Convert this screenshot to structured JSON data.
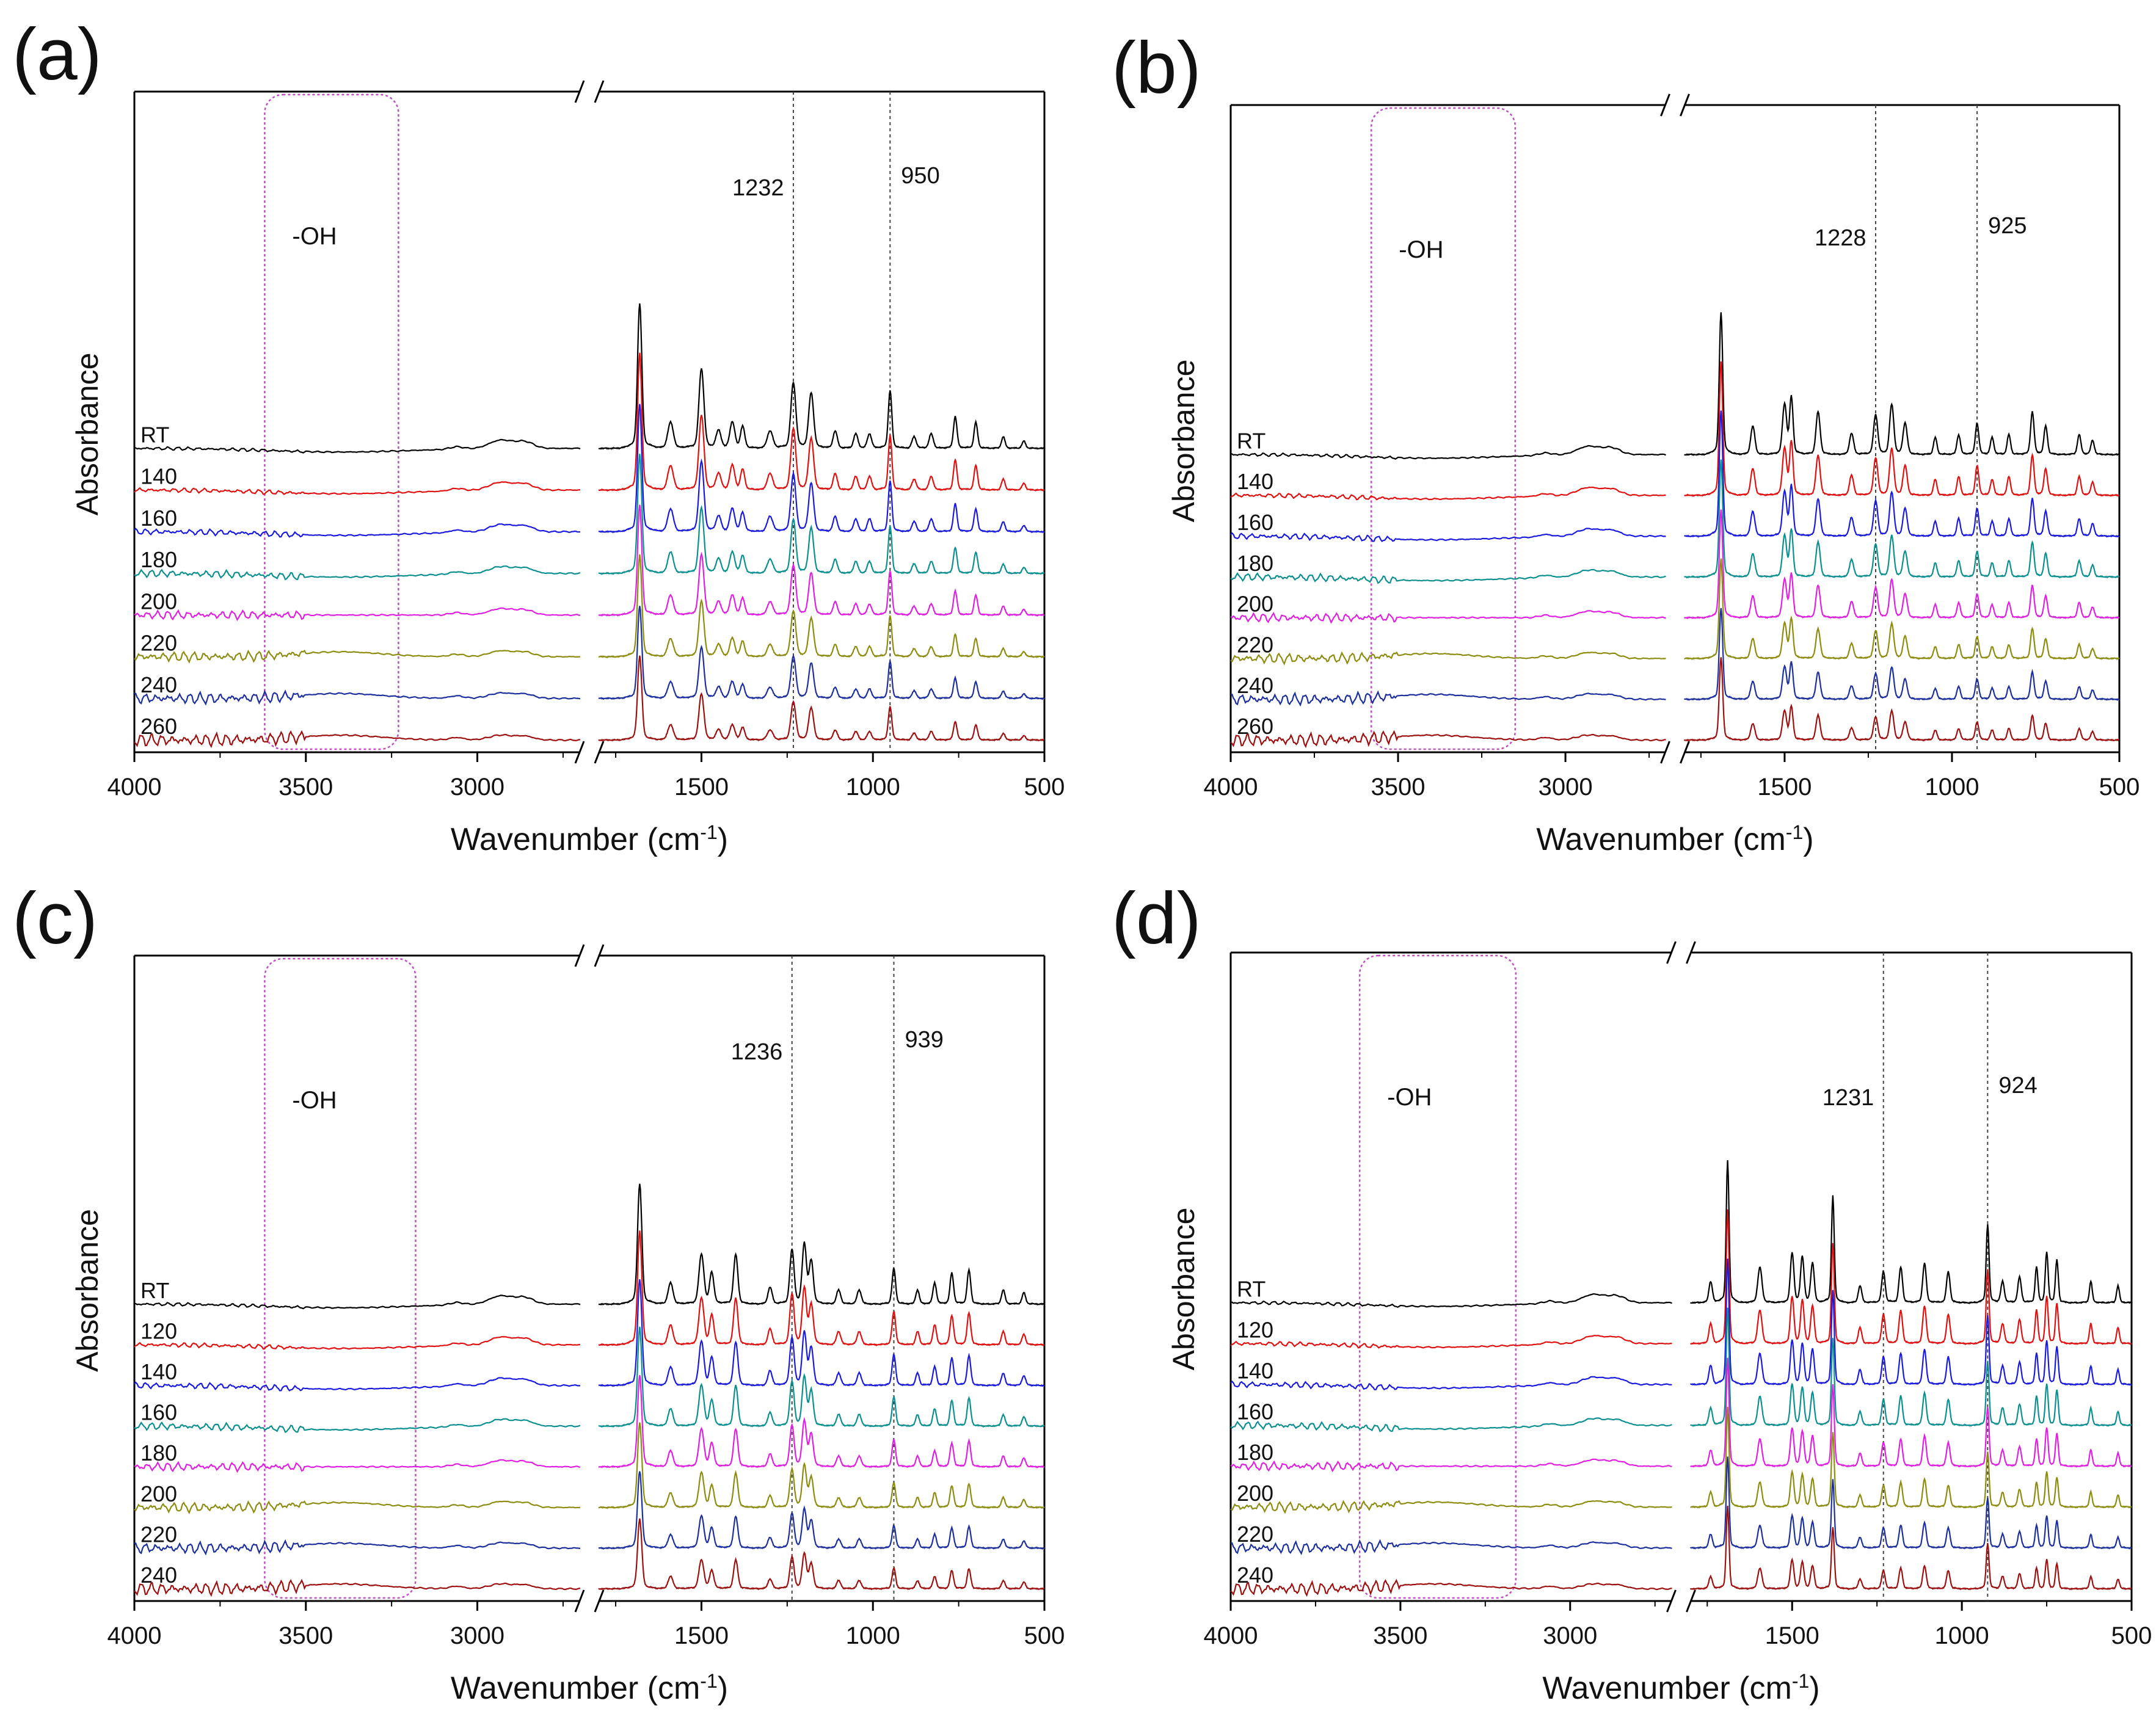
{
  "figure": {
    "description_free": true
  },
  "chart_data": [
    {
      "type": "line",
      "panel_label": "(a)",
      "xlabel_main": "Wavenumber (cm",
      "xlabel_sup": "-1",
      "xlabel_close": ")",
      "ylabel": "Absorbance",
      "xlim": [
        4000,
        500
      ],
      "axis_break": [
        2700,
        1800
      ],
      "xticks": [
        4000,
        3500,
        3000,
        1500,
        1000,
        500
      ],
      "xtick_labels": [
        "4000",
        "3500",
        "3000",
        "1500",
        "1000",
        "500"
      ],
      "box": {
        "label": "-OH",
        "range": [
          3620,
          3230
        ],
        "color": "#c04fc0"
      },
      "vlines": [
        {
          "x": 1232,
          "label": "1232"
        },
        {
          "x": 950,
          "label": "950"
        }
      ],
      "series": [
        {
          "name": "RT",
          "color": "#000000"
        },
        {
          "name": "140",
          "color": "#e01010"
        },
        {
          "name": "160",
          "color": "#1a1adf"
        },
        {
          "name": "180",
          "color": "#0b8f8f"
        },
        {
          "name": "200",
          "color": "#e020e0"
        },
        {
          "name": "220",
          "color": "#8c8c10"
        },
        {
          "name": "240",
          "color": "#1c2f9c"
        },
        {
          "name": "260",
          "color": "#9c1010"
        }
      ]
    },
    {
      "type": "line",
      "panel_label": "(b)",
      "xlabel_main": "Wavenumber (cm",
      "xlabel_sup": "-1",
      "xlabel_close": ")",
      "ylabel": "Absorbance",
      "xlim": [
        4000,
        500
      ],
      "axis_break": [
        2700,
        1800
      ],
      "xticks": [
        4000,
        3500,
        3000,
        1500,
        1000,
        500
      ],
      "xtick_labels": [
        "4000",
        "3500",
        "3000",
        "1500",
        "1000",
        "500"
      ],
      "box": {
        "label": "-OH",
        "range": [
          3580,
          3150
        ],
        "color": "#c04fc0"
      },
      "vlines": [
        {
          "x": 1228,
          "label": "1228"
        },
        {
          "x": 925,
          "label": "925"
        }
      ],
      "series": [
        {
          "name": "RT",
          "color": "#000000"
        },
        {
          "name": "140",
          "color": "#e01010"
        },
        {
          "name": "160",
          "color": "#1a1adf"
        },
        {
          "name": "180",
          "color": "#0b8f8f"
        },
        {
          "name": "200",
          "color": "#e020e0"
        },
        {
          "name": "220",
          "color": "#8c8c10"
        },
        {
          "name": "240",
          "color": "#1c2f9c"
        },
        {
          "name": "260",
          "color": "#9c1010"
        }
      ]
    },
    {
      "type": "line",
      "panel_label": "(c)",
      "xlabel_main": "Wavenumber (cm",
      "xlabel_sup": "-1",
      "xlabel_close": ")",
      "ylabel": "Absorbance",
      "xlim": [
        4000,
        500
      ],
      "axis_break": [
        2700,
        1800
      ],
      "xticks": [
        4000,
        3500,
        3000,
        1500,
        1000,
        500
      ],
      "xtick_labels": [
        "4000",
        "3500",
        "3000",
        "1500",
        "1000",
        "500"
      ],
      "box": {
        "label": "-OH",
        "range": [
          3620,
          3180
        ],
        "color": "#c04fc0"
      },
      "vlines": [
        {
          "x": 1236,
          "label": "1236"
        },
        {
          "x": 939,
          "label": "939"
        }
      ],
      "series": [
        {
          "name": "RT",
          "color": "#000000"
        },
        {
          "name": "120",
          "color": "#e01010"
        },
        {
          "name": "140",
          "color": "#1a1adf"
        },
        {
          "name": "160",
          "color": "#0b8f8f"
        },
        {
          "name": "180",
          "color": "#e020e0"
        },
        {
          "name": "200",
          "color": "#8c8c10"
        },
        {
          "name": "220",
          "color": "#1c2f9c"
        },
        {
          "name": "240",
          "color": "#9c1010"
        }
      ]
    },
    {
      "type": "line",
      "panel_label": "(d)",
      "xlabel_main": "Wavenumber (cm",
      "xlabel_sup": "-1",
      "xlabel_close": ")",
      "ylabel": "Absorbance",
      "xlim": [
        4000,
        500
      ],
      "axis_break": [
        2700,
        1800
      ],
      "xticks": [
        4000,
        3500,
        3000,
        1500,
        1000,
        500
      ],
      "xtick_labels": [
        "4000",
        "3500",
        "3000",
        "1500",
        "1000",
        "500"
      ],
      "box": {
        "label": "-OH",
        "range": [
          3620,
          3160
        ],
        "color": "#c04fc0"
      },
      "vlines": [
        {
          "x": 1231,
          "label": "1231"
        },
        {
          "x": 924,
          "label": "924"
        }
      ],
      "series": [
        {
          "name": "RT",
          "color": "#000000"
        },
        {
          "name": "120",
          "color": "#e01010"
        },
        {
          "name": "140",
          "color": "#1a1adf"
        },
        {
          "name": "160",
          "color": "#0b8f8f"
        },
        {
          "name": "180",
          "color": "#e020e0"
        },
        {
          "name": "200",
          "color": "#8c8c10"
        },
        {
          "name": "220",
          "color": "#1c2f9c"
        },
        {
          "name": "240",
          "color": "#9c1010"
        }
      ]
    }
  ]
}
